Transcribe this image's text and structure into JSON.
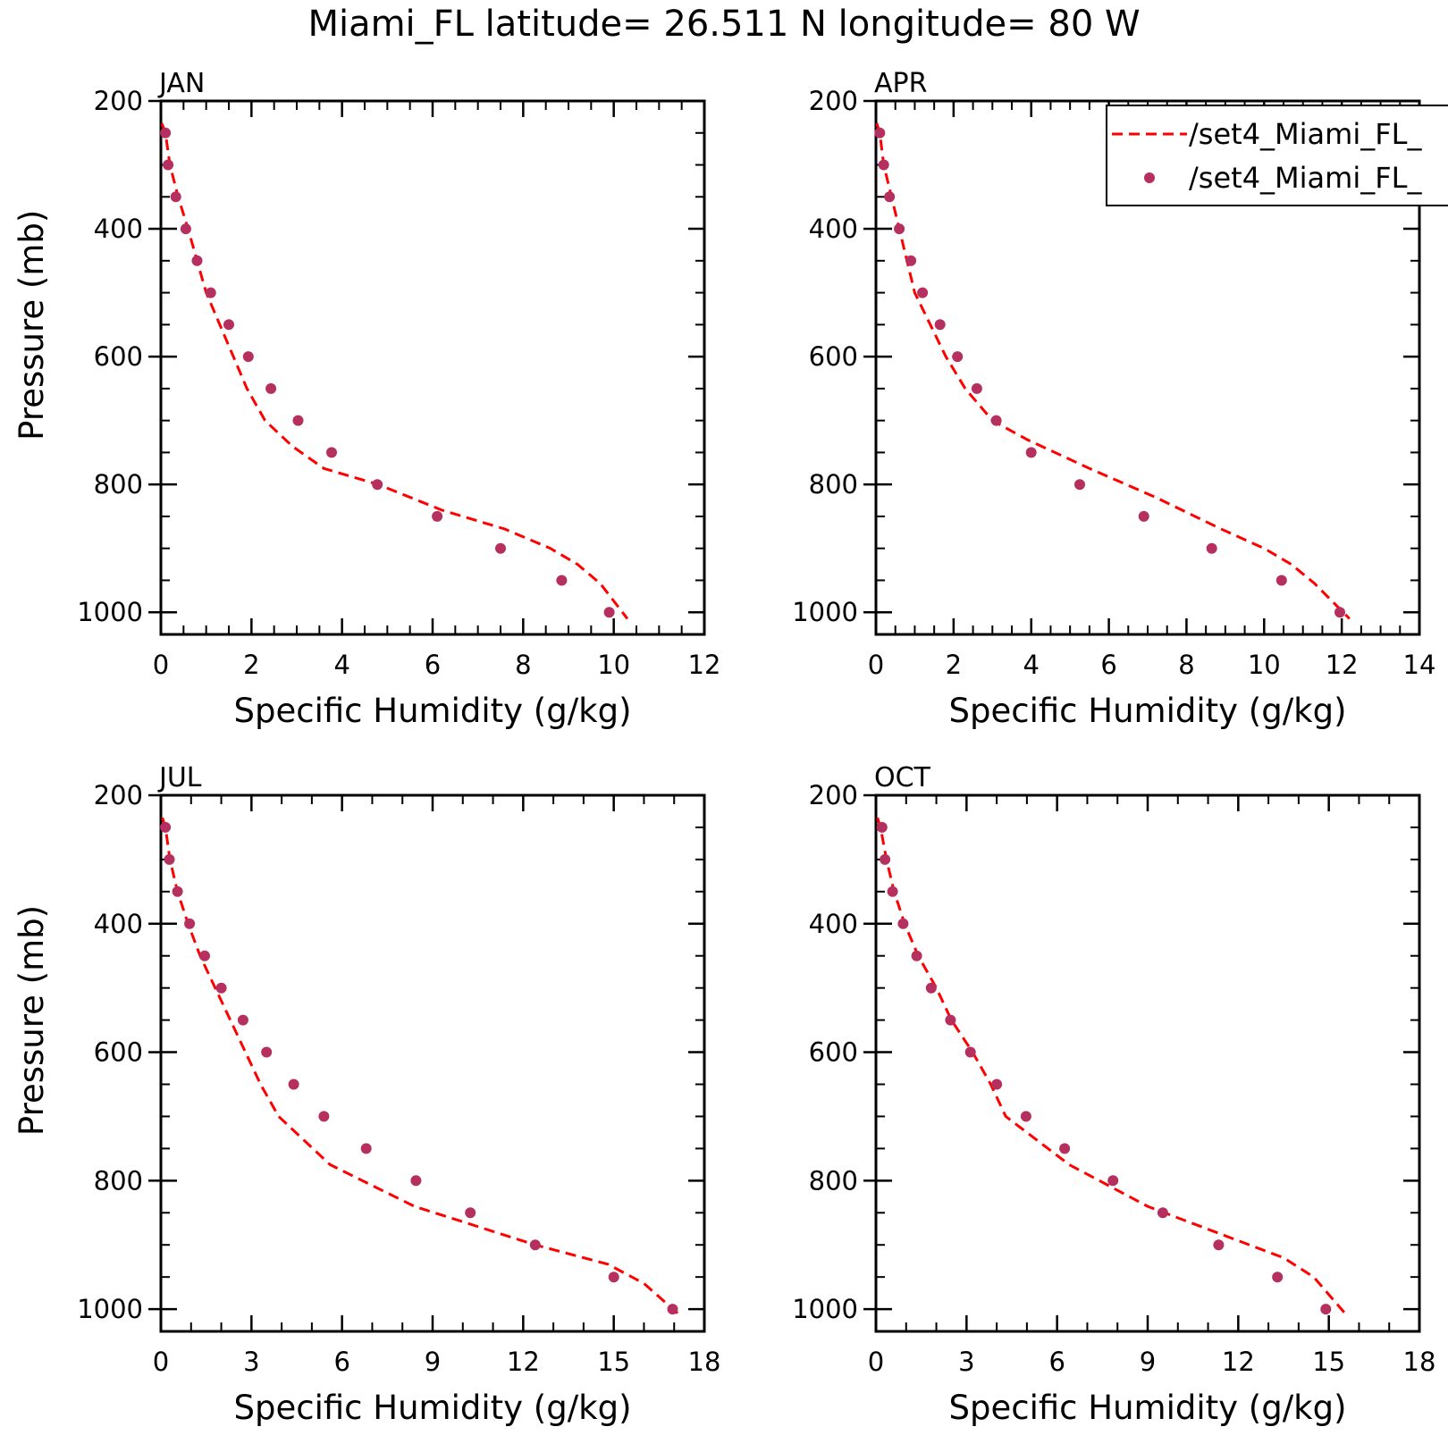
{
  "title": "Miami_FL  latitude= 26.511 N longitude= 80 W",
  "legend": {
    "line_label": "/set4_Miami_FL_",
    "dot_label": "/set4_Miami_FL_"
  },
  "colors": {
    "line": "#ff0000",
    "dots": "#b5305f",
    "axis": "#000000"
  },
  "chart_data": [
    {
      "type": "line",
      "panel_label": "JAN",
      "xlabel": "Specific Humidity (g/kg)",
      "ylabel": "Pressure (mb)",
      "xlim": [
        0,
        12
      ],
      "xticks": [
        0,
        2,
        4,
        6,
        8,
        10,
        12
      ],
      "ylim": [
        200,
        1000
      ],
      "y_inverted": true,
      "yticks": [
        200,
        400,
        600,
        800,
        1000
      ],
      "series": [
        {
          "style": "dashed-line",
          "x": [
            0.02,
            0.1,
            0.2,
            0.38,
            0.6,
            0.8,
            1.0,
            1.3,
            1.6,
            1.9,
            2.3,
            2.9,
            3.6,
            4.8,
            6.2,
            7.6,
            8.6,
            9.2,
            9.7,
            10.3
          ],
          "y": [
            235,
            250,
            300,
            350,
            400,
            450,
            500,
            550,
            600,
            650,
            700,
            740,
            775,
            800,
            840,
            870,
            900,
            925,
            955,
            1010
          ]
        },
        {
          "style": "dots",
          "x": [
            0.1,
            0.16,
            0.33,
            0.55,
            0.8,
            1.1,
            1.5,
            1.93,
            2.43,
            3.03,
            3.77,
            4.78,
            6.1,
            7.5,
            8.85,
            9.9
          ],
          "y": [
            250,
            300,
            350,
            400,
            450,
            500,
            550,
            600,
            650,
            700,
            750,
            800,
            850,
            900,
            950,
            1000
          ]
        }
      ]
    },
    {
      "type": "line",
      "panel_label": "APR",
      "xlabel": "Specific Humidity (g/kg)",
      "ylabel": "",
      "xlim": [
        0,
        14
      ],
      "xticks": [
        0,
        2,
        4,
        6,
        8,
        10,
        12,
        14
      ],
      "ylim": [
        200,
        1000
      ],
      "y_inverted": true,
      "yticks": [
        200,
        400,
        600,
        800,
        1000
      ],
      "series": [
        {
          "style": "dashed-line",
          "x": [
            0.02,
            0.1,
            0.2,
            0.4,
            0.6,
            0.8,
            1.0,
            1.4,
            1.8,
            2.3,
            3.0,
            3.9,
            5.5,
            7.2,
            8.9,
            10.0,
            10.7,
            11.3,
            12.2
          ],
          "y": [
            235,
            250,
            300,
            350,
            400,
            450,
            500,
            550,
            600,
            650,
            700,
            730,
            775,
            820,
            870,
            900,
            925,
            955,
            1010
          ]
        },
        {
          "style": "dots",
          "x": [
            0.1,
            0.2,
            0.35,
            0.6,
            0.9,
            1.2,
            1.65,
            2.1,
            2.6,
            3.1,
            4.0,
            5.25,
            6.9,
            8.65,
            10.45,
            11.95
          ],
          "y": [
            250,
            300,
            350,
            400,
            450,
            500,
            550,
            600,
            650,
            700,
            750,
            800,
            850,
            900,
            950,
            1000
          ]
        }
      ]
    },
    {
      "type": "line",
      "panel_label": "JUL",
      "xlabel": "Specific Humidity (g/kg)",
      "ylabel": "Pressure (mb)",
      "xlim": [
        0,
        18
      ],
      "xticks": [
        0,
        3,
        6,
        9,
        12,
        15,
        18
      ],
      "ylim": [
        200,
        1000
      ],
      "y_inverted": true,
      "yticks": [
        200,
        400,
        600,
        800,
        1000
      ],
      "series": [
        {
          "style": "dashed-line",
          "x": [
            0.05,
            0.15,
            0.3,
            0.55,
            0.9,
            1.3,
            1.8,
            2.3,
            2.8,
            3.3,
            3.9,
            5.6,
            8.4,
            12.4,
            14.8,
            16.0,
            17.2
          ],
          "y": [
            235,
            250,
            300,
            350,
            400,
            450,
            500,
            550,
            600,
            650,
            700,
            775,
            840,
            900,
            930,
            960,
            1010
          ]
        },
        {
          "style": "dots",
          "x": [
            0.15,
            0.28,
            0.55,
            0.95,
            1.45,
            2.0,
            2.72,
            3.5,
            4.4,
            5.4,
            6.8,
            8.45,
            10.25,
            12.4,
            15.0,
            16.95
          ],
          "y": [
            250,
            300,
            350,
            400,
            450,
            500,
            550,
            600,
            650,
            700,
            750,
            800,
            850,
            900,
            950,
            1000
          ]
        }
      ]
    },
    {
      "type": "line",
      "panel_label": "OCT",
      "xlabel": "Specific Humidity (g/kg)",
      "ylabel": "",
      "xlim": [
        0,
        18
      ],
      "xticks": [
        0,
        3,
        6,
        9,
        12,
        15,
        18
      ],
      "ylim": [
        200,
        1000
      ],
      "y_inverted": true,
      "yticks": [
        200,
        400,
        600,
        800,
        1000
      ],
      "series": [
        {
          "style": "dashed-line",
          "x": [
            0.05,
            0.15,
            0.35,
            0.6,
            0.95,
            1.4,
            2.0,
            2.5,
            3.2,
            3.8,
            4.3,
            6.4,
            9.0,
            11.8,
            13.5,
            14.5,
            15.6
          ],
          "y": [
            235,
            250,
            300,
            350,
            400,
            450,
            500,
            550,
            600,
            650,
            700,
            775,
            840,
            890,
            920,
            950,
            1010
          ]
        },
        {
          "style": "dots",
          "x": [
            0.2,
            0.3,
            0.55,
            0.9,
            1.35,
            1.83,
            2.47,
            3.13,
            4.0,
            4.97,
            6.25,
            7.85,
            9.5,
            11.35,
            13.3,
            14.9
          ],
          "y": [
            250,
            300,
            350,
            400,
            450,
            500,
            550,
            600,
            650,
            700,
            750,
            800,
            850,
            900,
            950,
            1000
          ]
        }
      ]
    }
  ]
}
